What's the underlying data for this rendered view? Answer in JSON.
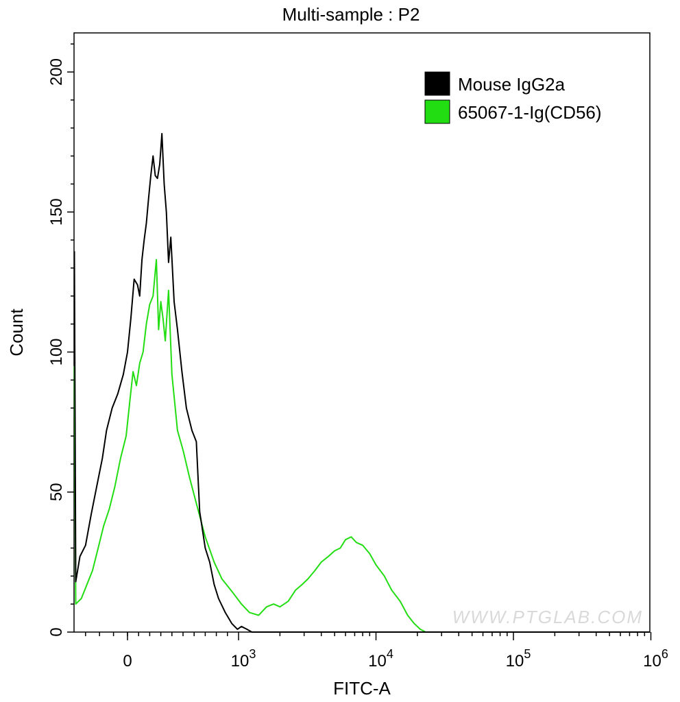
{
  "chart_data": {
    "type": "line",
    "title": "Multi-sample : P2",
    "xlabel": "FITC-A",
    "ylabel": "Count",
    "x_scale": "biexponential",
    "x_ticks": [
      {
        "value": 0,
        "label": "0"
      },
      {
        "value": 1000,
        "base": "10",
        "exp": "3"
      },
      {
        "value": 10000,
        "base": "10",
        "exp": "4"
      },
      {
        "value": 100000,
        "base": "10",
        "exp": "5"
      },
      {
        "value": 1000000,
        "base": "10",
        "exp": "6"
      }
    ],
    "y_ticks": [
      0,
      50,
      100,
      150,
      200
    ],
    "ylim": [
      0,
      212
    ],
    "grid": false,
    "legend_position": "top-right",
    "watermark": "WWW.PTGLAB.COM",
    "series": [
      {
        "name": "Mouse IgG2a",
        "color": "#000000",
        "points": [
          [
            -380,
            136
          ],
          [
            -370,
            18
          ],
          [
            -340,
            27
          ],
          [
            -300,
            31
          ],
          [
            -260,
            42
          ],
          [
            -220,
            52
          ],
          [
            -180,
            62
          ],
          [
            -150,
            72
          ],
          [
            -110,
            80
          ],
          [
            -70,
            85
          ],
          [
            -30,
            92
          ],
          [
            0,
            100
          ],
          [
            30,
            112
          ],
          [
            60,
            126
          ],
          [
            90,
            124
          ],
          [
            110,
            120
          ],
          [
            130,
            133
          ],
          [
            150,
            140
          ],
          [
            170,
            146
          ],
          [
            190,
            155
          ],
          [
            210,
            163
          ],
          [
            230,
            170
          ],
          [
            250,
            163
          ],
          [
            270,
            162
          ],
          [
            290,
            167
          ],
          [
            310,
            178
          ],
          [
            330,
            160
          ],
          [
            350,
            150
          ],
          [
            370,
            132
          ],
          [
            390,
            141
          ],
          [
            420,
            118
          ],
          [
            450,
            108
          ],
          [
            490,
            93
          ],
          [
            530,
            80
          ],
          [
            580,
            72
          ],
          [
            620,
            68
          ],
          [
            650,
            43
          ],
          [
            700,
            30
          ],
          [
            740,
            25
          ],
          [
            780,
            17
          ],
          [
            820,
            12
          ],
          [
            880,
            7
          ],
          [
            940,
            3
          ],
          [
            990,
            1
          ],
          [
            1050,
            2
          ],
          [
            1150,
            1
          ],
          [
            1250,
            0
          ],
          [
            2000,
            0
          ],
          [
            10000,
            0
          ],
          [
            100000,
            0
          ],
          [
            1000000,
            0
          ]
        ]
      },
      {
        "name": "65067-1-Ig(CD56)",
        "color": "#22dd11",
        "points": [
          [
            -380,
            95
          ],
          [
            -370,
            10
          ],
          [
            -330,
            12
          ],
          [
            -290,
            17
          ],
          [
            -250,
            22
          ],
          [
            -210,
            30
          ],
          [
            -170,
            38
          ],
          [
            -130,
            44
          ],
          [
            -90,
            52
          ],
          [
            -50,
            62
          ],
          [
            -10,
            70
          ],
          [
            20,
            82
          ],
          [
            50,
            93
          ],
          [
            80,
            88
          ],
          [
            110,
            96
          ],
          [
            140,
            100
          ],
          [
            170,
            110
          ],
          [
            200,
            117
          ],
          [
            230,
            120
          ],
          [
            260,
            133
          ],
          [
            280,
            108
          ],
          [
            300,
            118
          ],
          [
            320,
            112
          ],
          [
            340,
            104
          ],
          [
            370,
            122
          ],
          [
            400,
            92
          ],
          [
            450,
            72
          ],
          [
            500,
            65
          ],
          [
            560,
            55
          ],
          [
            620,
            46
          ],
          [
            700,
            34
          ],
          [
            780,
            25
          ],
          [
            850,
            19
          ],
          [
            950,
            14
          ],
          [
            1050,
            10
          ],
          [
            1200,
            7
          ],
          [
            1400,
            6
          ],
          [
            1600,
            9
          ],
          [
            1800,
            10
          ],
          [
            2000,
            9
          ],
          [
            2300,
            11
          ],
          [
            2600,
            15
          ],
          [
            2900,
            17
          ],
          [
            3200,
            19
          ],
          [
            3600,
            22
          ],
          [
            4000,
            25
          ],
          [
            4500,
            27
          ],
          [
            5000,
            29
          ],
          [
            5500,
            30
          ],
          [
            6000,
            33
          ],
          [
            6600,
            34
          ],
          [
            7200,
            32
          ],
          [
            8000,
            31
          ],
          [
            9000,
            28
          ],
          [
            10000,
            24
          ],
          [
            11500,
            20
          ],
          [
            13000,
            15
          ],
          [
            15000,
            11
          ],
          [
            17000,
            6
          ],
          [
            19000,
            3
          ],
          [
            21000,
            1
          ],
          [
            23000,
            0
          ],
          [
            30000,
            0
          ],
          [
            100000,
            0
          ],
          [
            1000000,
            0
          ]
        ]
      }
    ]
  }
}
